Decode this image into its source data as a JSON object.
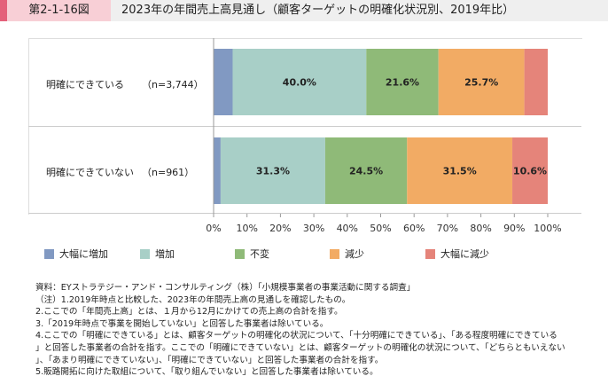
{
  "header": {
    "figure_no": "第2-1-16図",
    "title": "2023年の年間売上高見通し（顧客ターゲットの明確化状況別、2019年比）"
  },
  "chart_data": {
    "type": "bar",
    "orientation": "horizontal",
    "stacked": true,
    "title": "2023年の年間売上高見通し（顧客ターゲットの明確化状況別、2019年比）",
    "categories": [
      "明確にできている",
      "明確にできていない"
    ],
    "category_n": [
      "（n=3,744）",
      "（n=961）"
    ],
    "series": [
      {
        "name": "大幅に増加",
        "color": "#8199c2",
        "values": [
          5.7,
          2.1
        ],
        "labels": [
          "",
          ""
        ]
      },
      {
        "name": "増加",
        "color": "#a8cfc7",
        "values": [
          40.0,
          31.3
        ],
        "labels": [
          "40.0%",
          "31.3%"
        ]
      },
      {
        "name": "不変",
        "color": "#8fba78",
        "values": [
          21.6,
          24.5
        ],
        "labels": [
          "21.6%",
          "24.5%"
        ]
      },
      {
        "name": "減少",
        "color": "#f2ab64",
        "values": [
          25.7,
          31.5
        ],
        "labels": [
          "25.7%",
          "31.5%"
        ]
      },
      {
        "name": "大幅に減少",
        "color": "#e5847a",
        "values": [
          7.0,
          10.6
        ],
        "labels": [
          "",
          "10.6%"
        ]
      }
    ],
    "xlim": [
      0,
      100
    ],
    "xticks": [
      "0%",
      "10%",
      "20%",
      "30%",
      "40%",
      "50%",
      "60%",
      "70%",
      "80%",
      "90%",
      "100%"
    ],
    "legend": "bottom"
  },
  "notes": [
    "資料：EYストラテジー・アンド・コンサルティング（株）「小規模事業者の事業活動に関する調査」",
    "（注）1.2019年時点と比較した、2023年の年間売上高の見通しを確認したもの。",
    "2.ここでの「年間売上高」とは、１月から12月にかけての売上高の合計を指す。",
    "3.「2019年時点で事業を開始していない」と回答した事業者は除いている。",
    "4.ここでの「明確にできている」とは、顧客ターゲットの明確化の状況について、「十分明確にできている」、「ある程度明確にできている",
    "」と回答した事業者の合計を指す。ここでの「明確にできていない」とは、顧客ターゲットの明確化の状況について、「どちらともいえない",
    "」、「あまり明確にできていない」、「明確にできていない」と回答した事業者の合計を指す。",
    "5.販路開拓に向けた取組について、「取り組んでいない」と回答した事業者は除いている。"
  ]
}
